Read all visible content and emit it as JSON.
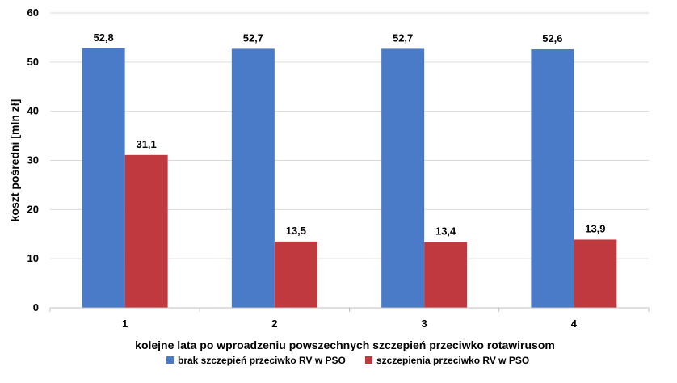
{
  "chart_data": {
    "type": "bar",
    "categories": [
      "1",
      "2",
      "3",
      "4"
    ],
    "series": [
      {
        "name": "brak szczepień przeciwko RV w PSO",
        "color": "#4a7bc8",
        "values": [
          52.8,
          52.7,
          52.7,
          52.6
        ],
        "labels": [
          "52,8",
          "52,7",
          "52,7",
          "52,6"
        ]
      },
      {
        "name": "szczepienia przeciwko RV w PSO",
        "color": "#c0393f",
        "values": [
          31.1,
          13.5,
          13.4,
          13.9
        ],
        "labels": [
          "31,1",
          "13,5",
          "13,4",
          "13,9"
        ]
      }
    ],
    "xlabel": "kolejne lata po wproadzeniu powszechnych szczepień przeciwko rotawirusom",
    "ylabel": "koszt pośredni [mln zł]",
    "ylim": [
      0,
      60
    ],
    "yticks": [
      0,
      10,
      20,
      30,
      40,
      50,
      60
    ],
    "grid": true,
    "legend": "bottom"
  }
}
